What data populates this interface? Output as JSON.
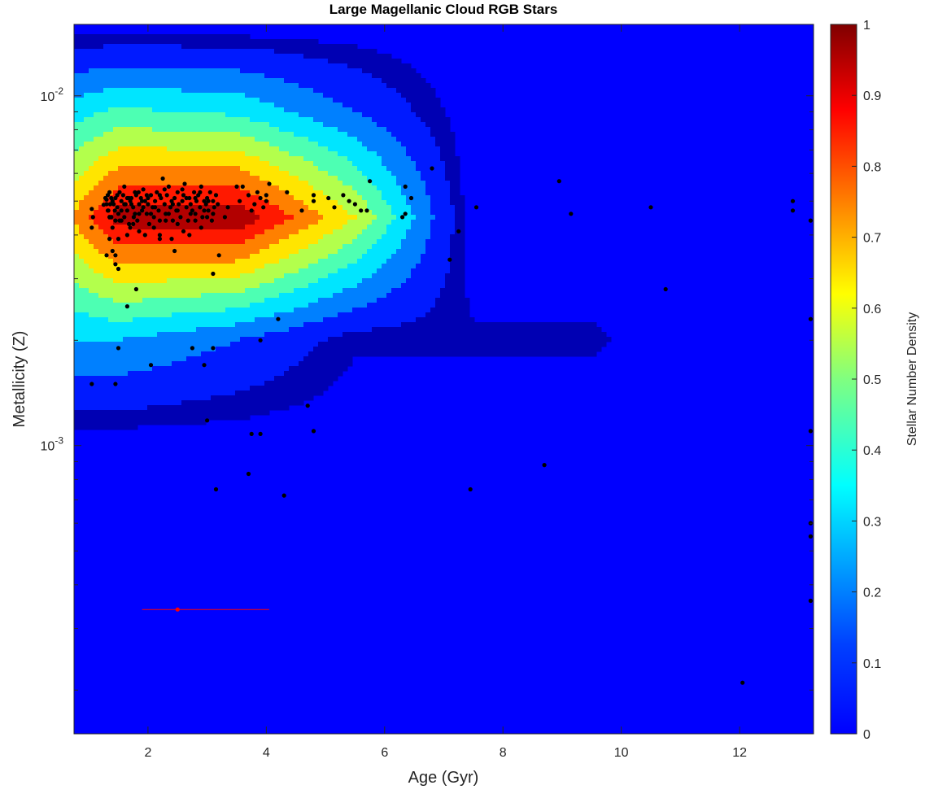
{
  "chart_data": {
    "type": "contour-scatter",
    "title": "Large Magellanic Cloud RGB Stars",
    "xlabel": "Age (Gyr)",
    "ylabel": "Metallicity (Z)",
    "colorbar_label": "Stellar Number Density",
    "xlim": [
      0.75,
      13.25
    ],
    "ylim": [
      0.00015,
      0.016
    ],
    "yscale": "log",
    "x_ticks": [
      2,
      4,
      6,
      8,
      10,
      12
    ],
    "x_tick_labels": [
      "2",
      "4",
      "6",
      "8",
      "10",
      "12"
    ],
    "y_major_ticks": [
      0.001,
      0.01
    ],
    "y_tick_labels": [
      {
        "base": "10",
        "exp": "-3"
      },
      {
        "base": "10",
        "exp": "-2"
      }
    ],
    "colorbar_ticks": [
      0,
      0.1,
      0.2,
      0.3,
      0.4,
      0.5,
      0.6,
      0.7,
      0.8,
      0.9,
      1
    ],
    "colorbar_tick_labels": [
      "0",
      "0.1",
      "0.2",
      "0.3",
      "0.4",
      "0.5",
      "0.6",
      "0.7",
      "0.8",
      "0.9",
      "1"
    ],
    "colormap": "jet",
    "grid": false,
    "density_grid": {
      "x": [
        0.75,
        1.5,
        3.5,
        5.5,
        7.5,
        9.5,
        11.5,
        13.25
      ],
      "y": [
        0.00015,
        0.0005,
        0.001,
        0.002,
        0.0045,
        0.009,
        0.016
      ],
      "z": [
        [
          0.0,
          0.0,
          0.0,
          0.0,
          0.0,
          0.0,
          0.0,
          0.0
        ],
        [
          0.0,
          0.0,
          0.0,
          0.0,
          0.0,
          0.0,
          0.0,
          0.0
        ],
        [
          0.0,
          0.0,
          0.0,
          0.0,
          0.0,
          0.0,
          0.0,
          0.0
        ],
        [
          0.3,
          0.3,
          0.2,
          0.06,
          0.06,
          0.06,
          0.0,
          0.0
        ],
        [
          0.72,
          0.95,
          0.98,
          0.6,
          0.0,
          0.0,
          0.0,
          0.0
        ],
        [
          0.36,
          0.42,
          0.38,
          0.2,
          0.0,
          0.0,
          0.0,
          0.0
        ],
        [
          0.0,
          0.0,
          0.0,
          0.0,
          0.0,
          0.0,
          0.0,
          0.0
        ]
      ]
    },
    "stars": [
      [
        1.05,
        0.00475
      ],
      [
        1.07,
        0.0045
      ],
      [
        1.05,
        0.0042
      ],
      [
        1.25,
        0.00488
      ],
      [
        1.3,
        0.00505
      ],
      [
        1.32,
        0.0052
      ],
      [
        1.33,
        0.0047
      ],
      [
        1.35,
        0.0045
      ],
      [
        1.38,
        0.0051
      ],
      [
        1.42,
        0.0049
      ],
      [
        1.45,
        0.0051
      ],
      [
        1.48,
        0.0048
      ],
      [
        1.5,
        0.0046
      ],
      [
        1.52,
        0.0044
      ],
      [
        1.55,
        0.005
      ],
      [
        1.58,
        0.0052
      ],
      [
        1.6,
        0.0055
      ],
      [
        1.62,
        0.0049
      ],
      [
        1.65,
        0.0047
      ],
      [
        1.68,
        0.0043
      ],
      [
        1.7,
        0.005
      ],
      [
        1.72,
        0.0051
      ],
      [
        1.75,
        0.0048
      ],
      [
        1.78,
        0.0046
      ],
      [
        1.8,
        0.0052
      ],
      [
        1.82,
        0.0044
      ],
      [
        1.85,
        0.0049
      ],
      [
        1.88,
        0.0051
      ],
      [
        1.9,
        0.0047
      ],
      [
        1.92,
        0.0054
      ],
      [
        1.95,
        0.005
      ],
      [
        1.98,
        0.0046
      ],
      [
        2.0,
        0.0049
      ],
      [
        2.02,
        0.0043
      ],
      [
        2.05,
        0.0052
      ],
      [
        2.08,
        0.0048
      ],
      [
        2.1,
        0.0045
      ],
      [
        2.12,
        0.005
      ],
      [
        2.15,
        0.0053
      ],
      [
        2.18,
        0.0047
      ],
      [
        2.2,
        0.0044
      ],
      [
        2.22,
        0.0051
      ],
      [
        2.25,
        0.0058
      ],
      [
        2.28,
        0.0049
      ],
      [
        2.3,
        0.0046
      ],
      [
        2.32,
        0.0052
      ],
      [
        2.35,
        0.0055
      ],
      [
        2.38,
        0.0048
      ],
      [
        2.4,
        0.005
      ],
      [
        2.42,
        0.0044
      ],
      [
        2.45,
        0.0051
      ],
      [
        2.48,
        0.0047
      ],
      [
        2.5,
        0.0053
      ],
      [
        2.52,
        0.0049
      ],
      [
        2.55,
        0.0045
      ],
      [
        2.58,
        0.005
      ],
      [
        2.6,
        0.0052
      ],
      [
        2.62,
        0.0056
      ],
      [
        2.65,
        0.0048
      ],
      [
        2.68,
        0.0044
      ],
      [
        2.7,
        0.0051
      ],
      [
        2.72,
        0.0049
      ],
      [
        2.75,
        0.0047
      ],
      [
        2.78,
        0.0053
      ],
      [
        2.8,
        0.0046
      ],
      [
        2.82,
        0.005
      ],
      [
        2.85,
        0.0052
      ],
      [
        2.88,
        0.0048
      ],
      [
        2.9,
        0.0055
      ],
      [
        2.92,
        0.0045
      ],
      [
        2.95,
        0.005
      ],
      [
        2.98,
        0.0049
      ],
      [
        3.0,
        0.0051
      ],
      [
        3.02,
        0.0047
      ],
      [
        3.05,
        0.0053
      ],
      [
        3.08,
        0.0044
      ],
      [
        3.1,
        0.005
      ],
      [
        3.12,
        0.0048
      ],
      [
        3.15,
        0.0052
      ],
      [
        3.18,
        0.0049
      ],
      [
        1.3,
        0.0049
      ],
      [
        1.32,
        0.0047
      ],
      [
        1.35,
        0.0053
      ],
      [
        1.38,
        0.0045
      ],
      [
        1.4,
        0.005
      ],
      [
        1.45,
        0.0044
      ],
      [
        1.48,
        0.0052
      ],
      [
        1.55,
        0.0047
      ],
      [
        1.6,
        0.0045
      ],
      [
        1.65,
        0.0051
      ],
      [
        1.72,
        0.0049
      ],
      [
        1.78,
        0.0053
      ],
      [
        1.85,
        0.0046
      ],
      [
        1.9,
        0.005
      ],
      [
        1.98,
        0.0052
      ],
      [
        2.05,
        0.0046
      ],
      [
        2.12,
        0.0048
      ],
      [
        2.2,
        0.0052
      ],
      [
        2.28,
        0.0054
      ],
      [
        2.35,
        0.0046
      ],
      [
        2.42,
        0.0049
      ],
      [
        2.5,
        0.0047
      ],
      [
        2.58,
        0.0054
      ],
      [
        2.65,
        0.0051
      ],
      [
        2.72,
        0.0046
      ],
      [
        2.8,
        0.0051
      ],
      [
        2.88,
        0.0053
      ],
      [
        2.95,
        0.0047
      ],
      [
        3.02,
        0.005
      ],
      [
        3.1,
        0.0046
      ],
      [
        1.28,
        0.0051
      ],
      [
        1.36,
        0.0049
      ],
      [
        1.44,
        0.0047
      ],
      [
        1.52,
        0.0053
      ],
      [
        1.6,
        0.0049
      ],
      [
        1.68,
        0.0051
      ],
      [
        1.76,
        0.0045
      ],
      [
        1.84,
        0.0053
      ],
      [
        1.92,
        0.0048
      ],
      [
        2.0,
        0.0051
      ],
      [
        1.4,
        0.0042
      ],
      [
        1.5,
        0.0039
      ],
      [
        1.4,
        0.0036
      ],
      [
        1.45,
        0.0035
      ],
      [
        1.35,
        0.0039
      ],
      [
        1.55,
        0.0044
      ],
      [
        1.7,
        0.0042
      ],
      [
        1.65,
        0.004
      ],
      [
        1.75,
        0.0043
      ],
      [
        1.85,
        0.0041
      ],
      [
        1.95,
        0.004
      ],
      [
        2.1,
        0.0042
      ],
      [
        2.2,
        0.004
      ],
      [
        2.3,
        0.0044
      ],
      [
        2.4,
        0.0039
      ],
      [
        2.5,
        0.0043
      ],
      [
        2.6,
        0.0041
      ],
      [
        2.7,
        0.004
      ],
      [
        2.8,
        0.0044
      ],
      [
        2.9,
        0.0042
      ],
      [
        3.0,
        0.0045
      ],
      [
        3.3,
        0.0045
      ],
      [
        3.35,
        0.0048
      ],
      [
        3.5,
        0.0055
      ],
      [
        3.6,
        0.0055
      ],
      [
        3.55,
        0.005
      ],
      [
        3.7,
        0.0052
      ],
      [
        3.75,
        0.0047
      ],
      [
        3.8,
        0.0049
      ],
      [
        3.85,
        0.0053
      ],
      [
        3.9,
        0.0051
      ],
      [
        3.95,
        0.0048
      ],
      [
        4.0,
        0.0052
      ],
      [
        4.0,
        0.005
      ],
      [
        4.05,
        0.0056
      ],
      [
        4.35,
        0.0053
      ],
      [
        4.6,
        0.0047
      ],
      [
        4.8,
        0.0052
      ],
      [
        4.8,
        0.005
      ],
      [
        5.05,
        0.0051
      ],
      [
        5.15,
        0.0048
      ],
      [
        5.3,
        0.0052
      ],
      [
        5.4,
        0.005
      ],
      [
        5.5,
        0.0049
      ],
      [
        5.6,
        0.0047
      ],
      [
        5.75,
        0.0057
      ],
      [
        5.7,
        0.0047
      ],
      [
        6.35,
        0.0055
      ],
      [
        6.35,
        0.0046
      ],
      [
        6.45,
        0.0051
      ],
      [
        6.3,
        0.0045
      ],
      [
        6.8,
        0.0062
      ],
      [
        7.25,
        0.0041
      ],
      [
        7.55,
        0.0048
      ],
      [
        7.1,
        0.0034
      ],
      [
        8.95,
        0.0057
      ],
      [
        9.15,
        0.0046
      ],
      [
        10.5,
        0.0048
      ],
      [
        12.9,
        0.005
      ],
      [
        12.9,
        0.0047
      ],
      [
        13.2,
        0.0044
      ],
      [
        13.2,
        0.0023
      ],
      [
        13.2,
        0.0011
      ],
      [
        13.2,
        0.0006
      ],
      [
        13.2,
        0.00055
      ],
      [
        13.2,
        0.00036
      ],
      [
        12.05,
        0.00021
      ],
      [
        10.75,
        0.0028
      ],
      [
        8.7,
        0.00088
      ],
      [
        7.45,
        0.00075
      ],
      [
        1.3,
        0.0035
      ],
      [
        1.45,
        0.0033
      ],
      [
        1.5,
        0.0032
      ],
      [
        1.5,
        0.0019
      ],
      [
        1.65,
        0.0025
      ],
      [
        1.8,
        0.0028
      ],
      [
        2.05,
        0.0017
      ],
      [
        2.2,
        0.0039
      ],
      [
        2.45,
        0.0036
      ],
      [
        2.75,
        0.0019
      ],
      [
        2.95,
        0.0017
      ],
      [
        3.1,
        0.0019
      ],
      [
        3.1,
        0.0031
      ],
      [
        3.2,
        0.0035
      ],
      [
        1.05,
        0.0015
      ],
      [
        1.45,
        0.0015
      ],
      [
        4.2,
        0.0023
      ],
      [
        3.9,
        0.002
      ],
      [
        4.7,
        0.0013
      ],
      [
        4.8,
        0.0011
      ],
      [
        3.0,
        0.00118
      ],
      [
        3.75,
        0.00108
      ],
      [
        3.9,
        0.00108
      ],
      [
        3.7,
        0.00083
      ],
      [
        3.15,
        0.00075
      ],
      [
        4.3,
        0.00072
      ]
    ],
    "errorbar": {
      "x": 2.5,
      "y": 0.00034,
      "xerr_low": 1.9,
      "xerr_high": 4.05
    }
  }
}
